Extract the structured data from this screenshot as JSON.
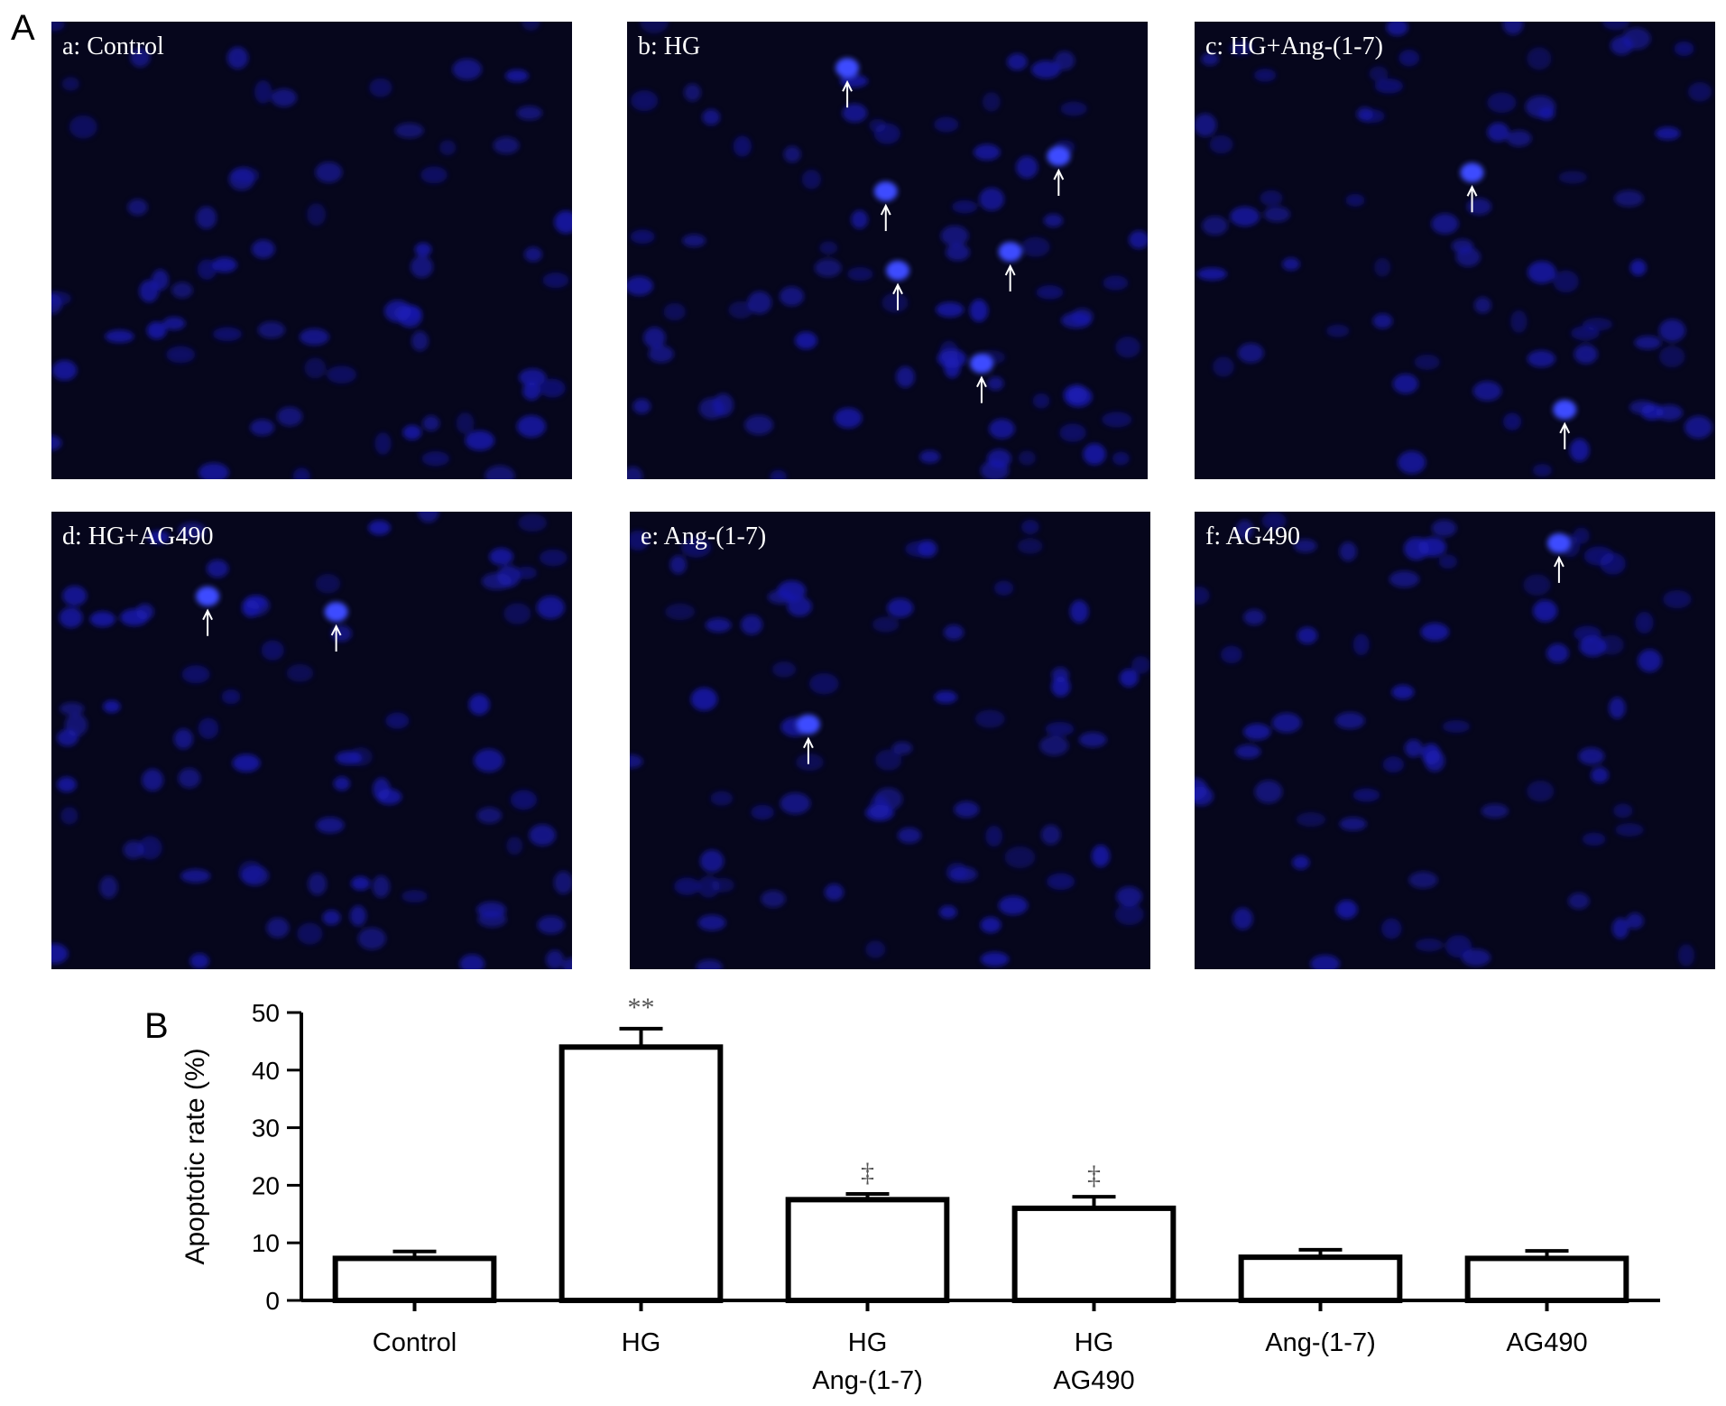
{
  "figure": {
    "panel_a_label": "A",
    "panel_b_label": "B",
    "micrographs": [
      "a: Control",
      "b: HG",
      "c: HG+Ang-(1-7)",
      "d: HG+AG490",
      "e: Ang-(1-7)",
      "f: AG490"
    ]
  },
  "chart_data": {
    "type": "bar",
    "y_label": "Apoptotic rate (%)",
    "categories": [
      "Control",
      "HG",
      [
        "HG",
        "Ang-(1-7)"
      ],
      [
        "HG",
        "AG490"
      ],
      "Ang-(1-7)",
      "AG490"
    ],
    "values": [
      7.3,
      44,
      17.5,
      16,
      7.5,
      7.3
    ],
    "errors": [
      1.2,
      3.2,
      1,
      2,
      1.3,
      1.3
    ],
    "annotations": [
      null,
      "**",
      "‡",
      "‡",
      null,
      null
    ],
    "color": "#ffffff",
    "ylim": [
      0,
      50
    ],
    "yticks": [
      0,
      10,
      20,
      30,
      40,
      50
    ],
    "grid": false
  }
}
